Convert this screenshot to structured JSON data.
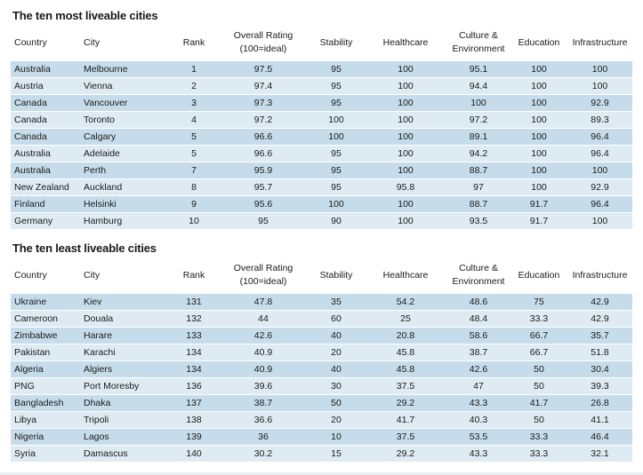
{
  "headers": {
    "country": "Country",
    "city": "City",
    "rank": "Rank",
    "overall_line1": "Overall Rating",
    "overall_line2": "(100=ideal)",
    "stability": "Stability",
    "healthcare": "Healthcare",
    "culture_line1": "Culture &",
    "culture_line2": "Environment",
    "education": "Education",
    "infrastructure": "Infrastructure"
  },
  "most_liveable": {
    "title": "The ten most liveable cities",
    "rows": [
      {
        "country": "Australia",
        "city": "Melbourne",
        "rank": "1",
        "overall": "97.5",
        "stability": "95",
        "healthcare": "100",
        "culture": "95.1",
        "education": "100",
        "infrastructure": "100"
      },
      {
        "country": "Austria",
        "city": "Vienna",
        "rank": "2",
        "overall": "97.4",
        "stability": "95",
        "healthcare": "100",
        "culture": "94.4",
        "education": "100",
        "infrastructure": "100"
      },
      {
        "country": "Canada",
        "city": "Vancouver",
        "rank": "3",
        "overall": "97.3",
        "stability": "95",
        "healthcare": "100",
        "culture": "100",
        "education": "100",
        "infrastructure": "92.9"
      },
      {
        "country": "Canada",
        "city": "Toronto",
        "rank": "4",
        "overall": "97.2",
        "stability": "100",
        "healthcare": "100",
        "culture": "97.2",
        "education": "100",
        "infrastructure": "89.3"
      },
      {
        "country": "Canada",
        "city": "Calgary",
        "rank": "5",
        "overall": "96.6",
        "stability": "100",
        "healthcare": "100",
        "culture": "89.1",
        "education": "100",
        "infrastructure": "96.4"
      },
      {
        "country": "Australia",
        "city": "Adelaide",
        "rank": "5",
        "overall": "96.6",
        "stability": "95",
        "healthcare": "100",
        "culture": "94.2",
        "education": "100",
        "infrastructure": "96.4"
      },
      {
        "country": "Australia",
        "city": "Perth",
        "rank": "7",
        "overall": "95.9",
        "stability": "95",
        "healthcare": "100",
        "culture": "88.7",
        "education": "100",
        "infrastructure": "100"
      },
      {
        "country": "New Zealand",
        "city": "Auckland",
        "rank": "8",
        "overall": "95.7",
        "stability": "95",
        "healthcare": "95.8",
        "culture": "97",
        "education": "100",
        "infrastructure": "92.9"
      },
      {
        "country": "Finland",
        "city": "Helsinki",
        "rank": "9",
        "overall": "95.6",
        "stability": "100",
        "healthcare": "100",
        "culture": "88.7",
        "education": "91.7",
        "infrastructure": "96.4"
      },
      {
        "country": "Germany",
        "city": "Hamburg",
        "rank": "10",
        "overall": "95",
        "stability": "90",
        "healthcare": "100",
        "culture": "93.5",
        "education": "91.7",
        "infrastructure": "100"
      }
    ]
  },
  "least_liveable": {
    "title": "The ten least liveable cities",
    "rows": [
      {
        "country": "Ukraine",
        "city": "Kiev",
        "rank": "131",
        "overall": "47.8",
        "stability": "35",
        "healthcare": "54.2",
        "culture": "48.6",
        "education": "75",
        "infrastructure": "42.9"
      },
      {
        "country": "Cameroon",
        "city": "Douala",
        "rank": "132",
        "overall": "44",
        "stability": "60",
        "healthcare": "25",
        "culture": "48.4",
        "education": "33.3",
        "infrastructure": "42.9"
      },
      {
        "country": "Zimbabwe",
        "city": "Harare",
        "rank": "133",
        "overall": "42.6",
        "stability": "40",
        "healthcare": "20.8",
        "culture": "58.6",
        "education": "66.7",
        "infrastructure": "35.7"
      },
      {
        "country": "Pakistan",
        "city": "Karachi",
        "rank": "134",
        "overall": "40.9",
        "stability": "20",
        "healthcare": "45.8",
        "culture": "38.7",
        "education": "66.7",
        "infrastructure": "51.8"
      },
      {
        "country": "Algeria",
        "city": "Algiers",
        "rank": "134",
        "overall": "40.9",
        "stability": "40",
        "healthcare": "45.8",
        "culture": "42.6",
        "education": "50",
        "infrastructure": "30.4"
      },
      {
        "country": "PNG",
        "city": "Port Moresby",
        "rank": "136",
        "overall": "39.6",
        "stability": "30",
        "healthcare": "37.5",
        "culture": "47",
        "education": "50",
        "infrastructure": "39.3"
      },
      {
        "country": "Bangladesh",
        "city": "Dhaka",
        "rank": "137",
        "overall": "38.7",
        "stability": "50",
        "healthcare": "29.2",
        "culture": "43.3",
        "education": "41.7",
        "infrastructure": "26.8"
      },
      {
        "country": "Libya",
        "city": "Tripoli",
        "rank": "138",
        "overall": "36.6",
        "stability": "20",
        "healthcare": "41.7",
        "culture": "40.3",
        "education": "50",
        "infrastructure": "41.1"
      },
      {
        "country": "Nigeria",
        "city": "Lagos",
        "rank": "139",
        "overall": "36",
        "stability": "10",
        "healthcare": "37.5",
        "culture": "53.5",
        "education": "33.3",
        "infrastructure": "46.4"
      },
      {
        "country": "Syria",
        "city": "Damascus",
        "rank": "140",
        "overall": "30.2",
        "stability": "15",
        "healthcare": "29.2",
        "culture": "43.3",
        "education": "33.3",
        "infrastructure": "32.1"
      }
    ]
  }
}
